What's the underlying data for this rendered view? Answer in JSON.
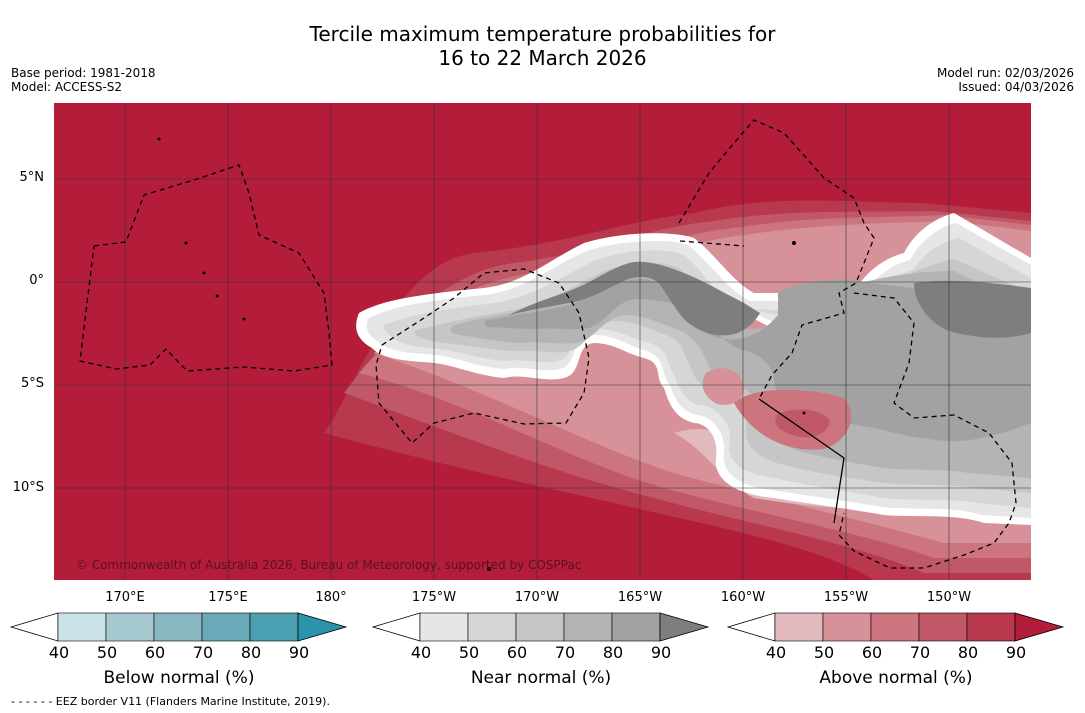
{
  "title": {
    "line1": "Tercile maximum temperature probabilities for",
    "line2": "16 to 22 March 2026"
  },
  "meta": {
    "base_period": "Base period: 1981-2018",
    "model": "Model: ACCESS-S2",
    "model_run": "Model run: 02/03/2026",
    "issued": "Issued: 04/03/2026"
  },
  "map": {
    "lat_labels": [
      "5°N",
      "0°",
      "5°S",
      "10°S"
    ],
    "lon_labels": [
      "170°E",
      "175°E",
      "180°",
      "175°W",
      "170°W",
      "165°W",
      "160°W",
      "155°W",
      "150°W"
    ],
    "credit": "© Commonwealth of Australia 2026, Bureau of Meteorology, supported by COSPPac",
    "colors": {
      "above_90": "#b31d3a",
      "land": "#000000",
      "gridline": "#333333"
    }
  },
  "colorbars": [
    {
      "name": "below",
      "label": "Below normal (%)",
      "ticks": [
        "40",
        "50",
        "60",
        "70",
        "80",
        "90"
      ],
      "colors": [
        "#ffffff",
        "#c9e3e9",
        "#a6c9d0",
        "#88b7c2",
        "#6aa9b7",
        "#4aa0b0",
        "#2a95aa"
      ]
    },
    {
      "name": "near",
      "label": "Near normal (%)",
      "ticks": [
        "40",
        "50",
        "60",
        "70",
        "80",
        "90"
      ],
      "colors": [
        "#ffffff",
        "#e6e6e6",
        "#d6d6d6",
        "#c6c6c6",
        "#b4b4b4",
        "#a2a2a2",
        "#7e7e7e"
      ]
    },
    {
      "name": "above",
      "label": "Above normal (%)",
      "ticks": [
        "40",
        "50",
        "60",
        "70",
        "80",
        "90"
      ],
      "colors": [
        "#ffffff",
        "#e2b9bf",
        "#d69298",
        "#cc757f",
        "#c15867",
        "#b8384d",
        "#b31d3a"
      ]
    }
  ],
  "footer": "- -  - -  - - EEZ border V11 (Flanders Marine Institute, 2019)."
}
